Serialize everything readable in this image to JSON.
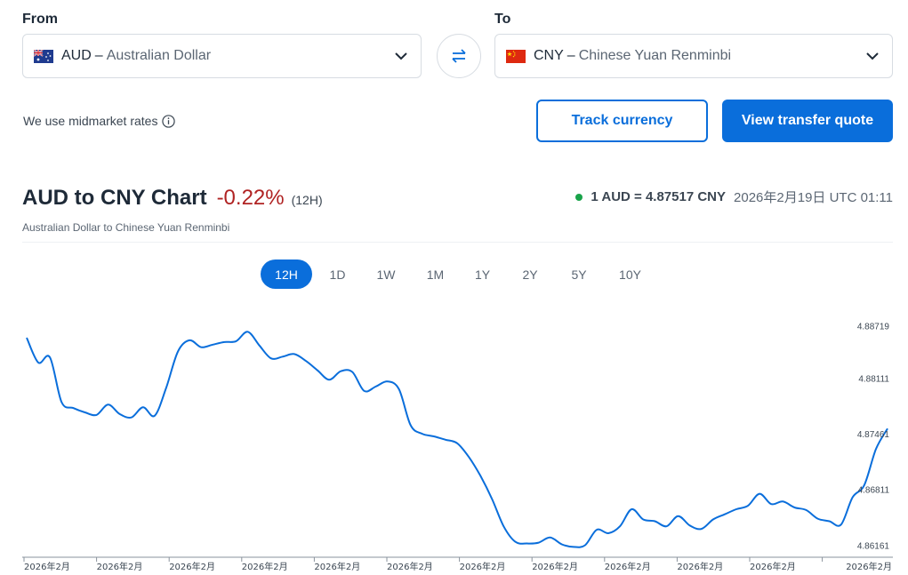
{
  "converter": {
    "from_label": "From",
    "to_label": "To",
    "from_code": "AUD",
    "from_name": "Australian Dollar",
    "to_code": "CNY",
    "to_name": "Chinese Yuan Renminbi",
    "dash": "–"
  },
  "info": {
    "midmarket_text": "We use midmarket rates"
  },
  "actions": {
    "track_label": "Track currency",
    "quote_label": "View transfer quote"
  },
  "header": {
    "title": "AUD to CNY Chart",
    "change": "-0.22%",
    "period": "(12H)",
    "subtitle": "Australian Dollar to Chinese Yuan Renminbi",
    "rate": "1 AUD = 4.87517 CNY",
    "timestamp": "2026年2月19日 UTC 01:11"
  },
  "ranges": [
    "12H",
    "1D",
    "1W",
    "1M",
    "1Y",
    "2Y",
    "5Y",
    "10Y"
  ],
  "active_range": "12H",
  "colors": {
    "accent": "#0a6edb",
    "negative": "#b02323",
    "live_dot": "#19a34a",
    "line": "#0a6edb"
  },
  "chart_data": {
    "type": "line",
    "ylim": [
      4.8603,
      4.8885
    ],
    "ytick_labels": [
      "4.88719",
      "4.88111",
      "4.87461",
      "4.86811",
      "4.86161"
    ],
    "ytick_values": [
      4.88719,
      4.88111,
      4.87461,
      4.86811,
      4.86161
    ],
    "xtick_labels": [
      "2026年2月",
      "2026年2月",
      "2026年2月",
      "2026年2月",
      "2026年2月",
      "2026年2月",
      "2026年2月",
      "2026年2月",
      "2026年2月",
      "2026年2月",
      "2026年2月",
      "2026年2月"
    ],
    "series": [
      {
        "values": [
          4.8858,
          4.8829,
          4.8835,
          4.8783,
          4.8776,
          4.8771,
          4.8768,
          4.878,
          4.8769,
          4.8765,
          4.8777,
          4.8767,
          4.88,
          4.8842,
          4.8855,
          4.8847,
          4.885,
          4.8853,
          4.8854,
          4.8865,
          4.8849,
          4.8834,
          4.8836,
          4.8839,
          4.8831,
          4.882,
          4.8809,
          4.8819,
          4.8818,
          4.8796,
          4.8801,
          4.8807,
          4.8798,
          4.8756,
          4.8746,
          4.8743,
          4.8739,
          4.8735,
          4.8719,
          4.8697,
          4.867,
          4.8638,
          4.862,
          4.8618,
          4.8619,
          4.8625,
          4.8617,
          4.8614,
          4.8616,
          4.8634,
          4.863,
          4.8638,
          4.8658,
          4.8646,
          4.8644,
          4.8638,
          4.865,
          4.8639,
          4.8635,
          4.8646,
          4.8652,
          4.8658,
          4.8662,
          4.8676,
          4.8664,
          4.8667,
          4.866,
          4.8657,
          4.8647,
          4.8644,
          4.864,
          4.8672,
          4.8686,
          4.8728,
          4.8752
        ]
      }
    ],
    "grid": false
  }
}
